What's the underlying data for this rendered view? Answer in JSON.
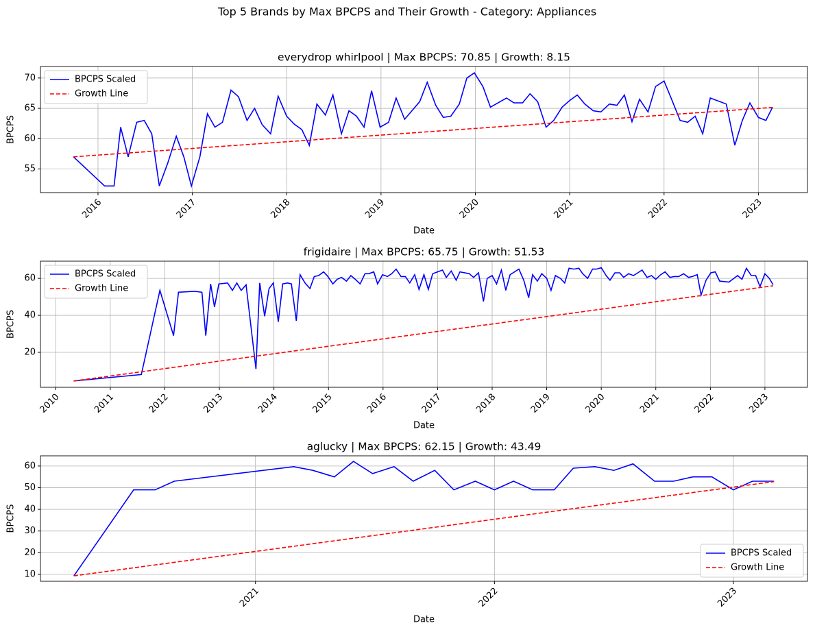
{
  "title": "Top 5 Brands by Max BPCPS and Their Growth - Category: Appliances",
  "chart_data": [
    {
      "type": "line",
      "title": "everydrop whirlpool | Max BPCPS: 70.85 | Growth: 8.15",
      "xlabel": "Date",
      "ylabel": "BPCPS",
      "xlim": [
        2015.39,
        2023.52
      ],
      "ylim": [
        51.1,
        71.9
      ],
      "xticks": [
        2016,
        2017,
        2018,
        2019,
        2020,
        2021,
        2022,
        2023
      ],
      "yticks": [
        55,
        60,
        65,
        70
      ],
      "grid": true,
      "legend": "upper left",
      "series": [
        {
          "name": "BPCPS Scaled",
          "color": "#0000ff",
          "style": "solid",
          "x": [
            2015.74,
            2016.07,
            2016.17,
            2016.24,
            2016.32,
            2016.41,
            2016.49,
            2016.57,
            2016.65,
            2016.74,
            2016.83,
            2016.91,
            2016.99,
            2017.08,
            2017.16,
            2017.24,
            2017.32,
            2017.41,
            2017.49,
            2017.58,
            2017.66,
            2017.74,
            2017.83,
            2017.91,
            2018.0,
            2018.08,
            2018.16,
            2018.24,
            2018.32,
            2018.41,
            2018.49,
            2018.58,
            2018.66,
            2018.74,
            2018.82,
            2018.9,
            2018.99,
            2019.08,
            2019.16,
            2019.25,
            2019.41,
            2019.49,
            2019.58,
            2019.66,
            2019.74,
            2019.83,
            2019.91,
            2019.99,
            2020.08,
            2020.16,
            2020.33,
            2020.41,
            2020.5,
            2020.58,
            2020.66,
            2020.75,
            2020.83,
            2020.92,
            2021.0,
            2021.08,
            2021.16,
            2021.25,
            2021.33,
            2021.42,
            2021.5,
            2021.58,
            2021.66,
            2021.74,
            2021.83,
            2021.91,
            2022.0,
            2022.08,
            2022.17,
            2022.25,
            2022.33,
            2022.41,
            2022.49,
            2022.66,
            2022.75,
            2022.83,
            2022.91,
            2023.0,
            2023.08,
            2023.15
          ],
          "values": [
            57.0,
            52.2,
            52.2,
            61.9,
            57.0,
            62.7,
            63.0,
            60.8,
            52.2,
            56.0,
            60.4,
            57.0,
            52.2,
            57.0,
            64.1,
            61.9,
            62.7,
            68.0,
            66.9,
            63.0,
            65.0,
            62.3,
            60.8,
            67.0,
            63.7,
            62.4,
            61.5,
            58.9,
            65.7,
            63.9,
            67.2,
            60.8,
            64.6,
            63.7,
            61.9,
            67.9,
            61.9,
            62.7,
            66.7,
            63.2,
            66.1,
            69.3,
            65.5,
            63.5,
            63.7,
            65.7,
            70.0,
            70.85,
            68.6,
            65.2,
            66.7,
            65.9,
            65.9,
            67.4,
            66.1,
            61.9,
            63.0,
            65.2,
            66.3,
            67.2,
            65.7,
            64.6,
            64.4,
            65.7,
            65.5,
            67.2,
            62.8,
            66.5,
            64.4,
            68.6,
            69.5,
            66.5,
            63.0,
            62.7,
            63.7,
            60.8,
            66.7,
            65.7,
            58.9,
            63.0,
            65.9,
            63.5,
            63.0,
            65.2
          ]
        },
        {
          "name": "Growth Line",
          "color": "#ff0000",
          "style": "dashed",
          "x": [
            2015.74,
            2023.15
          ],
          "values": [
            57.0,
            65.15
          ]
        }
      ]
    },
    {
      "type": "line",
      "title": "frigidaire | Max BPCPS: 65.75 | Growth: 51.53",
      "xlabel": "Date",
      "ylabel": "BPCPS",
      "xlim": [
        2009.72,
        2023.78
      ],
      "ylim": [
        1.1,
        69.3
      ],
      "xticks": [
        2010,
        2011,
        2012,
        2013,
        2014,
        2015,
        2016,
        2017,
        2018,
        2019,
        2020,
        2021,
        2022,
        2023
      ],
      "yticks": [
        20,
        40,
        60
      ],
      "grid": true,
      "legend": "upper left",
      "series": [
        {
          "name": "BPCPS Scaled",
          "color": "#0000ff",
          "style": "solid",
          "x": [
            2010.33,
            2011.57,
            2011.91,
            2012.16,
            2012.25,
            2012.55,
            2012.68,
            2012.75,
            2012.84,
            2012.91,
            2012.99,
            2013.15,
            2013.24,
            2013.32,
            2013.4,
            2013.49,
            2013.67,
            2013.74,
            2013.83,
            2013.91,
            2013.99,
            2014.08,
            2014.16,
            2014.25,
            2014.32,
            2014.41,
            2014.48,
            2014.57,
            2014.66,
            2014.74,
            2014.82,
            2014.91,
            2014.99,
            2015.08,
            2015.16,
            2015.24,
            2015.33,
            2015.41,
            2015.49,
            2015.58,
            2015.67,
            2015.74,
            2015.83,
            2015.9,
            2015.99,
            2016.08,
            2016.16,
            2016.24,
            2016.33,
            2016.41,
            2016.49,
            2016.58,
            2016.66,
            2016.75,
            2016.83,
            2016.91,
            2017.09,
            2017.16,
            2017.25,
            2017.34,
            2017.41,
            2017.58,
            2017.66,
            2017.75,
            2017.84,
            2017.91,
            2018.0,
            2018.08,
            2018.17,
            2018.25,
            2018.33,
            2018.49,
            2018.58,
            2018.67,
            2018.74,
            2018.83,
            2018.91,
            2019.0,
            2019.08,
            2019.16,
            2019.25,
            2019.33,
            2019.41,
            2019.5,
            2019.59,
            2019.66,
            2019.75,
            2019.84,
            2019.91,
            2020.0,
            2020.09,
            2020.16,
            2020.25,
            2020.34,
            2020.41,
            2020.5,
            2020.59,
            2020.67,
            2020.75,
            2020.84,
            2020.92,
            2021.0,
            2021.09,
            2021.17,
            2021.26,
            2021.34,
            2021.42,
            2021.51,
            2021.6,
            2021.67,
            2021.76,
            2021.83,
            2021.92,
            2022.01,
            2022.09,
            2022.17,
            2022.34,
            2022.5,
            2022.58,
            2022.66,
            2022.75,
            2022.83,
            2022.91,
            2023.0,
            2023.08,
            2023.15
          ],
          "values": [
            4.5,
            8,
            53.5,
            29,
            52.5,
            53,
            52.5,
            29,
            57,
            44.5,
            57,
            57.5,
            53.5,
            57.5,
            53.5,
            56.5,
            11,
            57.5,
            39.5,
            54.5,
            57.5,
            36.5,
            57,
            57.5,
            57,
            37,
            62,
            57.5,
            54.5,
            61,
            61.5,
            63.5,
            61,
            57,
            59.5,
            60.5,
            58.5,
            61.5,
            59.5,
            57,
            62.5,
            62.5,
            63.5,
            57,
            62,
            61,
            62.5,
            65,
            61,
            61,
            57.5,
            62,
            54,
            62,
            54,
            62.5,
            64.5,
            60.5,
            64,
            59,
            63.5,
            62.5,
            60.5,
            63,
            47.5,
            60,
            61.5,
            57,
            64.5,
            53.5,
            62,
            65,
            59,
            49.5,
            62,
            58.5,
            62.5,
            60,
            53.5,
            61.5,
            60,
            57.5,
            65.5,
            65,
            65.5,
            62.5,
            60,
            65,
            65,
            65.75,
            61.5,
            59,
            63,
            63,
            60.5,
            62.5,
            61.5,
            63,
            64.5,
            60.5,
            61.5,
            59.5,
            62,
            63.5,
            60.5,
            61,
            61,
            62.5,
            60.5,
            61,
            62,
            51,
            59,
            63,
            63.5,
            58.5,
            58,
            61.5,
            59.5,
            65.5,
            61.5,
            61.5,
            55.5,
            62.5,
            60,
            56.5
          ]
        },
        {
          "name": "Growth Line",
          "color": "#ff0000",
          "style": "dashed",
          "x": [
            2010.33,
            2023.15
          ],
          "values": [
            4.5,
            56.0
          ]
        }
      ]
    },
    {
      "type": "line",
      "title": "aglucky | Max BPCPS: 62.15 | Growth: 43.49",
      "xlabel": "Date",
      "ylabel": "BPCPS",
      "xlim": [
        2020.1,
        2023.31
      ],
      "ylim": [
        6.8,
        64.7
      ],
      "xticks": [
        2021,
        2022,
        2023
      ],
      "yticks": [
        10,
        20,
        30,
        40,
        50,
        60
      ],
      "grid": true,
      "legend": "lower right",
      "series": [
        {
          "name": "BPCPS Scaled",
          "color": "#0000ff",
          "style": "solid",
          "x": [
            2020.24,
            2020.49,
            2020.58,
            2020.66,
            2021.16,
            2021.24,
            2021.33,
            2021.41,
            2021.49,
            2021.58,
            2021.66,
            2021.75,
            2021.83,
            2021.92,
            2022.0,
            2022.08,
            2022.16,
            2022.25,
            2022.33,
            2022.42,
            2022.5,
            2022.58,
            2022.67,
            2022.75,
            2022.83,
            2022.91,
            2023.0,
            2023.08,
            2023.17
          ],
          "values": [
            9.3,
            49,
            49,
            53,
            59.7,
            58,
            55,
            62.15,
            56.5,
            59.7,
            53,
            58,
            49,
            53,
            49,
            53,
            49,
            49,
            59,
            59.7,
            58,
            61,
            53,
            53,
            55,
            55,
            49,
            53,
            53
          ]
        },
        {
          "name": "Growth Line",
          "color": "#ff0000",
          "style": "dashed",
          "x": [
            2020.24,
            2023.17
          ],
          "values": [
            9.3,
            52.8
          ]
        }
      ]
    }
  ]
}
